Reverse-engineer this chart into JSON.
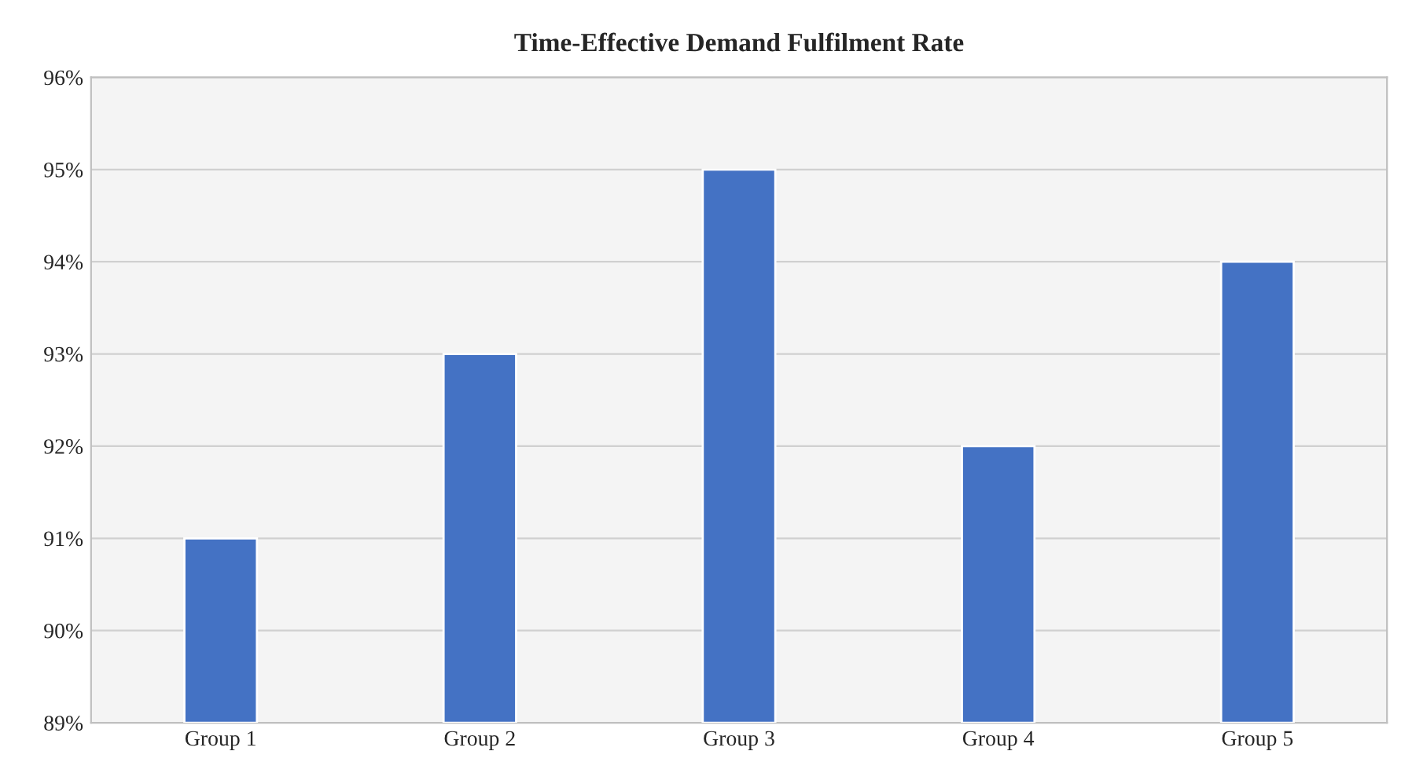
{
  "chart_data": {
    "type": "bar",
    "title": "Time-Effective Demand Fulfilment Rate",
    "categories": [
      "Group 1",
      "Group 2",
      "Group 3",
      "Group 4",
      "Group 5"
    ],
    "values": [
      91,
      93,
      95,
      92,
      94
    ],
    "color": "#4472c4",
    "ylim": [
      89,
      96
    ],
    "yticks": [
      {
        "value": 89,
        "label": "89%"
      },
      {
        "value": 90,
        "label": "90%"
      },
      {
        "value": 91,
        "label": "91%"
      },
      {
        "value": 92,
        "label": "92%"
      },
      {
        "value": 93,
        "label": "93%"
      },
      {
        "value": 94,
        "label": "94%"
      },
      {
        "value": 95,
        "label": "95%"
      },
      {
        "value": 96,
        "label": "96%"
      }
    ],
    "grid": "y",
    "legend": false
  }
}
